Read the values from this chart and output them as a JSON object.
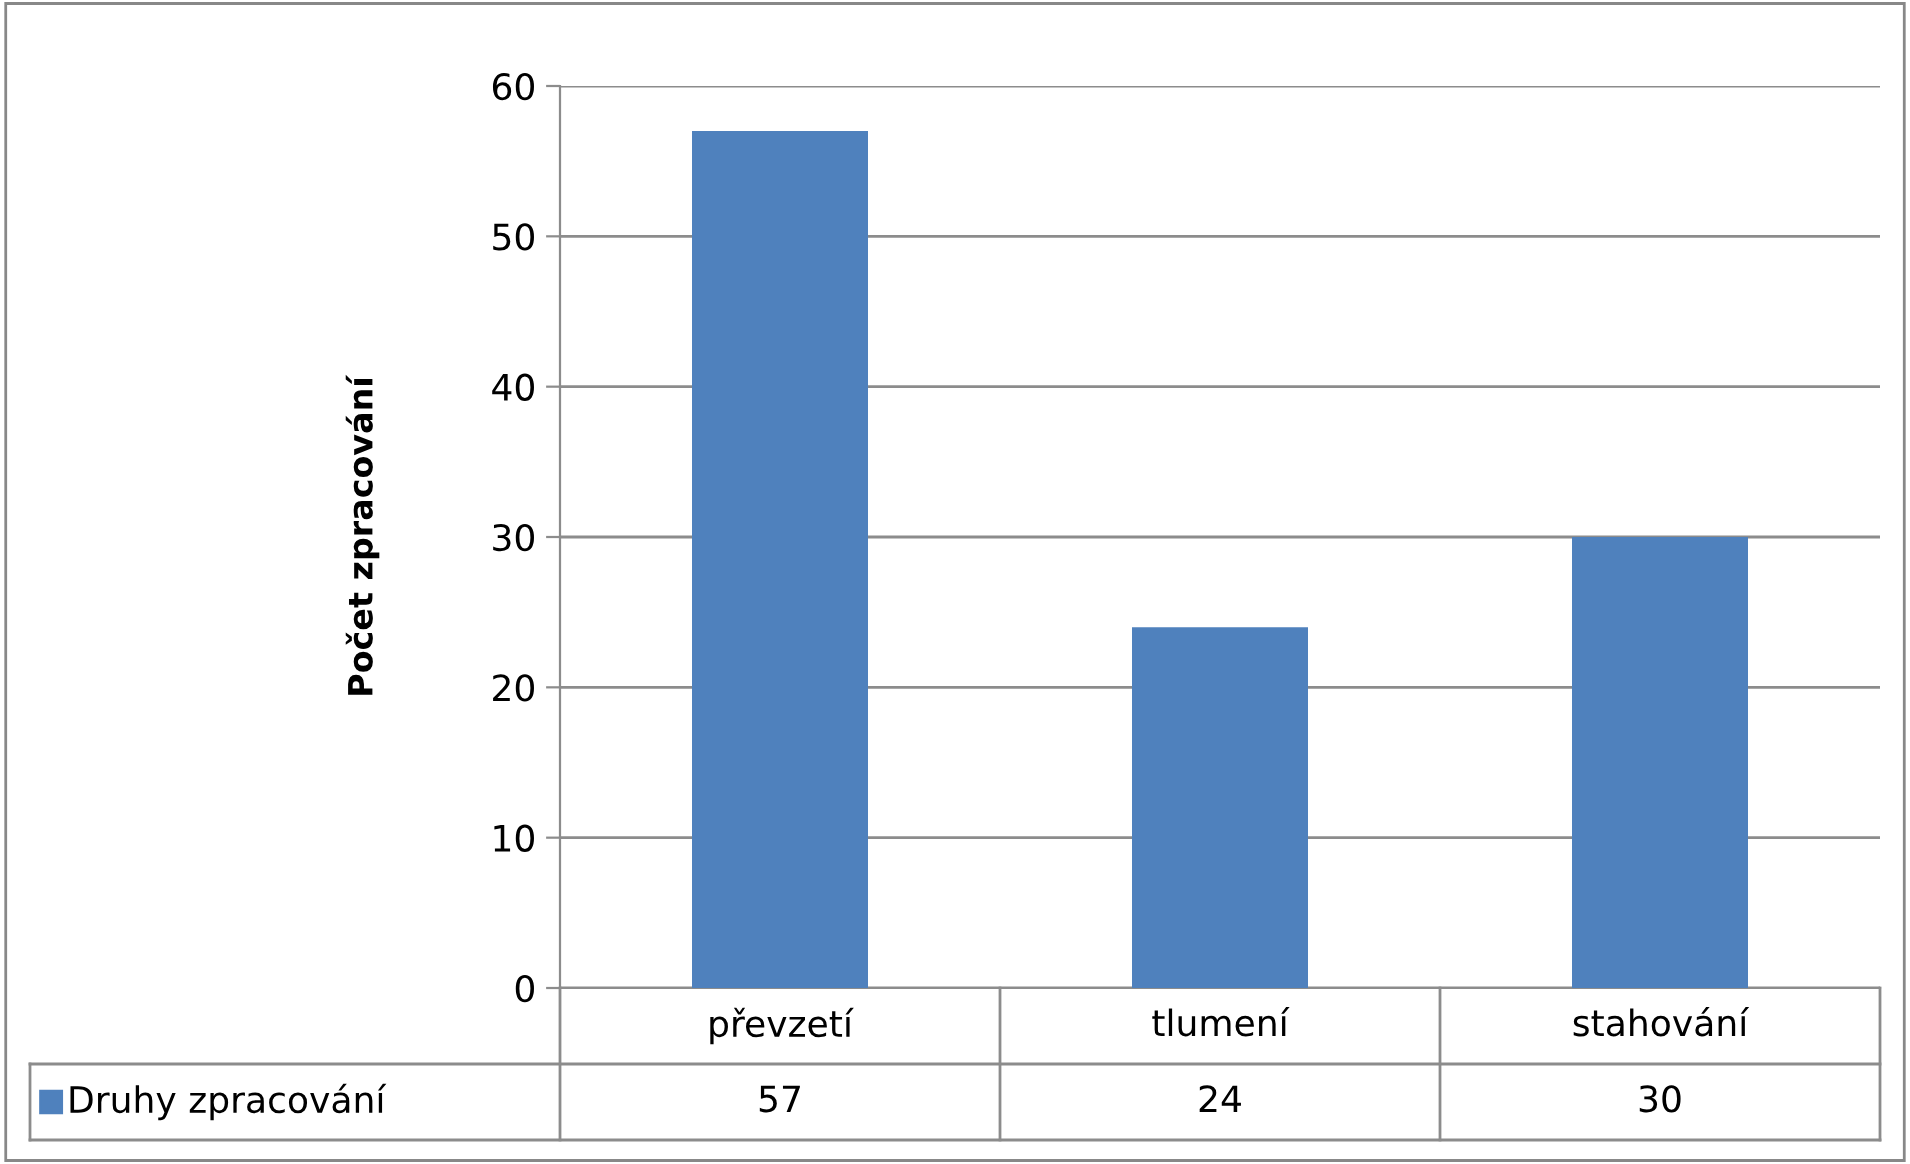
{
  "chart_data": {
    "type": "bar",
    "ylabel": "Počet zpracování",
    "categories": [
      "převzetí",
      "tlumení",
      "stahování"
    ],
    "series": [
      {
        "name": "Druhy zpracování",
        "color": "#4f81bd",
        "values": [
          57,
          24,
          30
        ]
      }
    ],
    "ylim": [
      0,
      60
    ],
    "yticks": [
      0,
      10,
      20,
      30,
      40,
      50,
      60
    ],
    "grid": "y",
    "legend": "bottom",
    "data_labels": true
  }
}
